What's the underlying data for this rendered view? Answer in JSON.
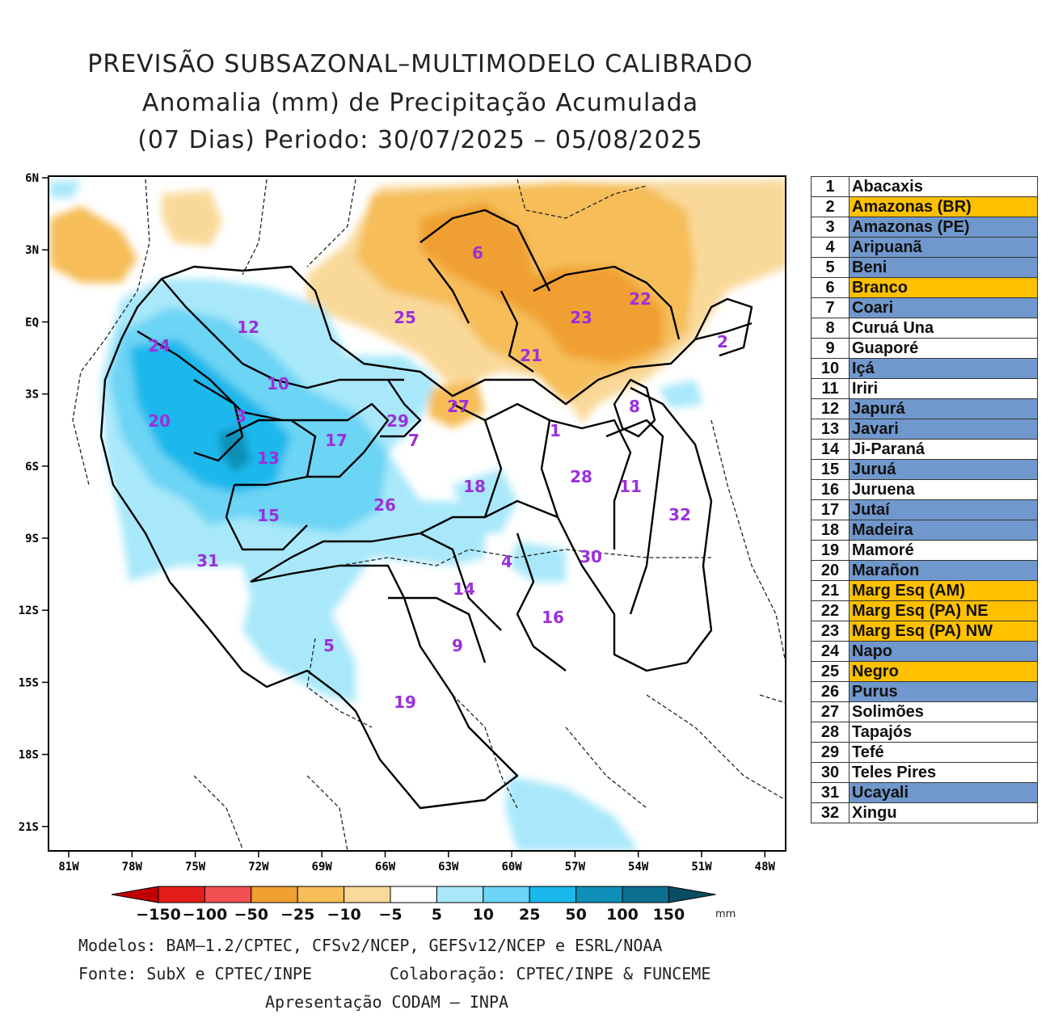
{
  "title": {
    "line1": "PREVISÃO SUBSAZONAL–MULTIMODELO CALIBRADO",
    "line2": "Anomalia (mm) de Precipitação Acumulada",
    "line3": "(07 Dias) Periodo: 30/07/2025 – 05/08/2025"
  },
  "axes": {
    "lat_labels": [
      "6N",
      "3N",
      "EQ",
      "3S",
      "6S",
      "9S",
      "12S",
      "15S",
      "18S",
      "21S"
    ],
    "lon_labels": [
      "81W",
      "78W",
      "75W",
      "72W",
      "69W",
      "66W",
      "63W",
      "60W",
      "57W",
      "54W",
      "51W",
      "48W"
    ]
  },
  "colorbar": {
    "labels": [
      "−150",
      "−100",
      "−50",
      "−25",
      "−10",
      "−5",
      "5",
      "10",
      "25",
      "50",
      "100",
      "150"
    ],
    "unit": "mm",
    "colors": [
      "#c00000",
      "#e51c1c",
      "#f25050",
      "#f0a030",
      "#f6bd58",
      "#f9d99a",
      "#ffffff",
      "#a8e8fa",
      "#6cd4f4",
      "#1ab8ec",
      "#0e8fb8",
      "#0b6f90",
      "#0a4d63"
    ]
  },
  "basins": [
    {
      "num": "1",
      "name": "Abacaxis",
      "cat": "none"
    },
    {
      "num": "2",
      "name": "Amazonas (BR)",
      "cat": "dry"
    },
    {
      "num": "3",
      "name": "Amazonas (PE)",
      "cat": "wet"
    },
    {
      "num": "4",
      "name": "Aripuanã",
      "cat": "wet"
    },
    {
      "num": "5",
      "name": "Beni",
      "cat": "wet"
    },
    {
      "num": "6",
      "name": "Branco",
      "cat": "dry"
    },
    {
      "num": "7",
      "name": "Coari",
      "cat": "wet"
    },
    {
      "num": "8",
      "name": "Curuá Una",
      "cat": "none"
    },
    {
      "num": "9",
      "name": "Guaporé",
      "cat": "none"
    },
    {
      "num": "10",
      "name": "Içá",
      "cat": "wet"
    },
    {
      "num": "11",
      "name": "Iriri",
      "cat": "none"
    },
    {
      "num": "12",
      "name": "Japurá",
      "cat": "wet"
    },
    {
      "num": "13",
      "name": "Javari",
      "cat": "wet"
    },
    {
      "num": "14",
      "name": "Ji-Paraná",
      "cat": "none"
    },
    {
      "num": "15",
      "name": "Juruá",
      "cat": "wet"
    },
    {
      "num": "16",
      "name": "Juruena",
      "cat": "none"
    },
    {
      "num": "17",
      "name": "Jutaí",
      "cat": "wet"
    },
    {
      "num": "18",
      "name": "Madeira",
      "cat": "wet"
    },
    {
      "num": "19",
      "name": "Mamoré",
      "cat": "none"
    },
    {
      "num": "20",
      "name": "Marañon",
      "cat": "wet"
    },
    {
      "num": "21",
      "name": "Marg Esq (AM)",
      "cat": "dry"
    },
    {
      "num": "22",
      "name": "Marg Esq (PA) NE",
      "cat": "dry"
    },
    {
      "num": "23",
      "name": "Marg Esq (PA) NW",
      "cat": "dry"
    },
    {
      "num": "24",
      "name": "Napo",
      "cat": "wet"
    },
    {
      "num": "25",
      "name": "Negro",
      "cat": "dry"
    },
    {
      "num": "26",
      "name": "Purus",
      "cat": "wet"
    },
    {
      "num": "27",
      "name": "Solimões",
      "cat": "none"
    },
    {
      "num": "28",
      "name": "Tapajós",
      "cat": "none"
    },
    {
      "num": "29",
      "name": "Tefé",
      "cat": "none"
    },
    {
      "num": "30",
      "name": "Teles Pires",
      "cat": "none"
    },
    {
      "num": "31",
      "name": "Ucayali",
      "cat": "wet"
    },
    {
      "num": "32",
      "name": "Xingu",
      "cat": "none"
    }
  ],
  "category_colors": {
    "dry": "#ffc000",
    "wet": "#7098cc",
    "none": "#ffffff"
  },
  "footer": {
    "models": "Modelos: BAM–1.2/CPTEC, CFSv2/NCEP, GEFSv12/NCEP e ESRL/NOAA",
    "source": "Fonte: SubX e CPTEC/INPE",
    "collab": "Colaboração: CPTEC/INPE & FUNCEME",
    "presentation": "Apresentação CODAM – INPA"
  }
}
